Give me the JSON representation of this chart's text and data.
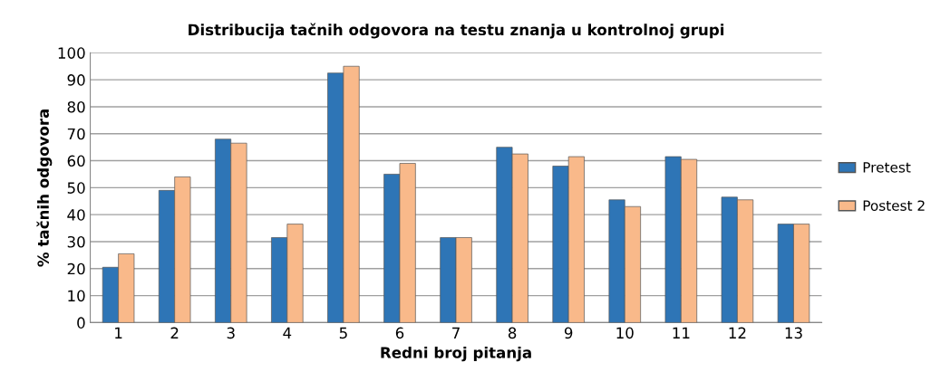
{
  "chart_data": {
    "type": "bar",
    "title": "Distribucija tačnih odgovora na testu znanja u kontrolnoj grupi",
    "xlabel": "Redni broj pitanja",
    "ylabel": "% tačnih odgovora",
    "categories": [
      "1",
      "2",
      "3",
      "4",
      "5",
      "6",
      "7",
      "8",
      "9",
      "10",
      "11",
      "12",
      "13"
    ],
    "series": [
      {
        "name": "Pretest",
        "color": "#2e75b6",
        "values": [
          20.5,
          49,
          68,
          31.5,
          92.5,
          55,
          31.5,
          65,
          58,
          45.5,
          61.5,
          46.5,
          36.5
        ]
      },
      {
        "name": "Postest 2",
        "color": "#f9b98a",
        "values": [
          25.5,
          54,
          66.5,
          36.5,
          95,
          59,
          31.5,
          62.5,
          61.5,
          43,
          60.5,
          45.5,
          36.5
        ]
      }
    ],
    "ylim": [
      0,
      100
    ],
    "yticks": [
      0,
      10,
      20,
      30,
      40,
      50,
      60,
      70,
      80,
      90,
      100
    ],
    "grid": "y",
    "legend": "right"
  }
}
